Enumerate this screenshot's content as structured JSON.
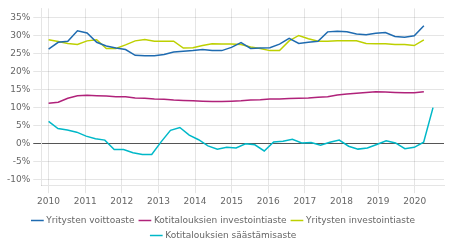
{
  "chart_data": {
    "type": "line",
    "xlim": [
      2009.8,
      2020.8
    ],
    "ylim": [
      -0.115,
      0.375
    ],
    "xticks": [
      2010,
      2011,
      2012,
      2013,
      2014,
      2015,
      2016,
      2017,
      2018,
      2019,
      2020
    ],
    "yticks": [
      {
        "value": -0.1,
        "label": "-10%"
      },
      {
        "value": -0.05,
        "label": "-5%"
      },
      {
        "value": 0.0,
        "label": "0%"
      },
      {
        "value": 0.05,
        "label": "5%"
      },
      {
        "value": 0.1,
        "label": "10%"
      },
      {
        "value": 0.15,
        "label": "15%"
      },
      {
        "value": 0.2,
        "label": "20%"
      },
      {
        "value": 0.25,
        "label": "25%"
      },
      {
        "value": 0.3,
        "label": "30%"
      },
      {
        "value": 0.35,
        "label": "35%"
      }
    ],
    "grid": true,
    "legend": "bottom",
    "series": [
      {
        "name": "Yritysten voittoaste",
        "color": "#1f6bb0",
        "x": [
          2010,
          2010.2628,
          2010.5256,
          2010.7885,
          2011.0513,
          2011.3141,
          2011.5769,
          2011.8397,
          2012.1026,
          2012.3654,
          2012.6282,
          2012.891,
          2013.1538,
          2013.4167,
          2013.6795,
          2013.9423,
          2014.2051,
          2014.4679,
          2014.7308,
          2014.9936,
          2015.2564,
          2015.5192,
          2015.7821,
          2016.0449,
          2016.3077,
          2016.5705,
          2016.8333,
          2017.0962,
          2017.359,
          2017.6218,
          2017.8846,
          2018.1474,
          2018.4103,
          2018.6731,
          2018.9359,
          2019.1987,
          2019.4615,
          2019.7244,
          2019.9872,
          2020.25
        ],
        "values": [
          0.262,
          0.281,
          0.284,
          0.313,
          0.307,
          0.281,
          0.271,
          0.265,
          0.261,
          0.245,
          0.244,
          0.244,
          0.247,
          0.254,
          0.256,
          0.258,
          0.261,
          0.258,
          0.258,
          0.267,
          0.28,
          0.264,
          0.265,
          0.266,
          0.276,
          0.292,
          0.278,
          0.281,
          0.284,
          0.31,
          0.312,
          0.31,
          0.304,
          0.302,
          0.306,
          0.308,
          0.297,
          0.295,
          0.299,
          0.327
        ]
      },
      {
        "name": "Kotitalouksien investointiaste",
        "color": "#b0227a",
        "x": [
          2010,
          2010.2628,
          2010.5256,
          2010.7885,
          2011.0513,
          2011.3141,
          2011.5769,
          2011.8397,
          2012.1026,
          2012.3654,
          2012.6282,
          2012.891,
          2013.1538,
          2013.4167,
          2013.6795,
          2013.9423,
          2014.2051,
          2014.4679,
          2014.7308,
          2014.9936,
          2015.2564,
          2015.5192,
          2015.7821,
          2016.0449,
          2016.3077,
          2016.5705,
          2016.8333,
          2017.0962,
          2017.359,
          2017.6218,
          2017.8846,
          2018.1474,
          2018.4103,
          2018.6731,
          2018.9359,
          2019.1987,
          2019.4615,
          2019.7244,
          2019.9872,
          2020.25
        ],
        "values": [
          0.112,
          0.115,
          0.126,
          0.133,
          0.134,
          0.133,
          0.132,
          0.13,
          0.13,
          0.127,
          0.126,
          0.124,
          0.123,
          0.121,
          0.12,
          0.119,
          0.118,
          0.117,
          0.117,
          0.118,
          0.119,
          0.121,
          0.122,
          0.124,
          0.124,
          0.125,
          0.126,
          0.127,
          0.129,
          0.13,
          0.135,
          0.138,
          0.14,
          0.142,
          0.144,
          0.143,
          0.142,
          0.141,
          0.141,
          0.144
        ]
      },
      {
        "name": "Yritysten investointiaste",
        "color": "#bdd000",
        "x": [
          2010,
          2010.2628,
          2010.5256,
          2010.7885,
          2011.0513,
          2011.3141,
          2011.5769,
          2011.8397,
          2012.1026,
          2012.3654,
          2012.6282,
          2012.891,
          2013.1538,
          2013.4167,
          2013.6795,
          2013.9423,
          2014.2051,
          2014.4679,
          2014.7308,
          2014.9936,
          2015.2564,
          2015.5192,
          2015.7821,
          2016.0449,
          2016.3077,
          2016.5705,
          2016.8333,
          2017.0962,
          2017.359,
          2017.6218,
          2017.8846,
          2018.1474,
          2018.4103,
          2018.6731,
          2018.9359,
          2019.1987,
          2019.4615,
          2019.7244,
          2019.9872,
          2020.25
        ],
        "values": [
          0.288,
          0.283,
          0.278,
          0.275,
          0.285,
          0.288,
          0.264,
          0.264,
          0.274,
          0.285,
          0.289,
          0.284,
          0.284,
          0.284,
          0.265,
          0.266,
          0.272,
          0.277,
          0.276,
          0.276,
          0.275,
          0.268,
          0.264,
          0.258,
          0.258,
          0.285,
          0.3,
          0.291,
          0.284,
          0.284,
          0.285,
          0.285,
          0.285,
          0.278,
          0.277,
          0.277,
          0.275,
          0.275,
          0.272,
          0.288
        ]
      },
      {
        "name": "Kotitalouksien säästämisaste",
        "color": "#00b8c8",
        "x": [
          2010,
          2010.2561,
          2010.5122,
          2010.7683,
          2011.0244,
          2011.2805,
          2011.5366,
          2011.7927,
          2012.0488,
          2012.3049,
          2012.561,
          2012.8171,
          2013.0732,
          2013.3293,
          2013.5854,
          2013.8415,
          2014.0976,
          2014.3537,
          2014.6098,
          2014.8659,
          2015.122,
          2015.378,
          2015.6341,
          2015.8902,
          2016.1463,
          2016.4024,
          2016.6585,
          2016.9146,
          2017.1707,
          2017.4268,
          2017.6829,
          2017.939,
          2018.1951,
          2018.4512,
          2018.7073,
          2018.9634,
          2019.2195,
          2019.4756,
          2019.7317,
          2019.9878,
          2020.2439,
          2020.5
        ],
        "values": [
          0.062,
          0.042,
          0.038,
          0.032,
          0.021,
          0.014,
          0.01,
          -0.016,
          -0.016,
          -0.025,
          -0.03,
          -0.03,
          0.005,
          0.037,
          0.045,
          0.024,
          0.011,
          -0.006,
          -0.015,
          -0.01,
          -0.012,
          0.0,
          -0.003,
          -0.02,
          0.005,
          0.007,
          0.012,
          0.002,
          0.003,
          -0.004,
          0.004,
          0.01,
          -0.007,
          -0.015,
          -0.012,
          -0.002,
          0.008,
          0.002,
          -0.014,
          -0.01,
          0.004,
          0.1
        ]
      }
    ]
  }
}
